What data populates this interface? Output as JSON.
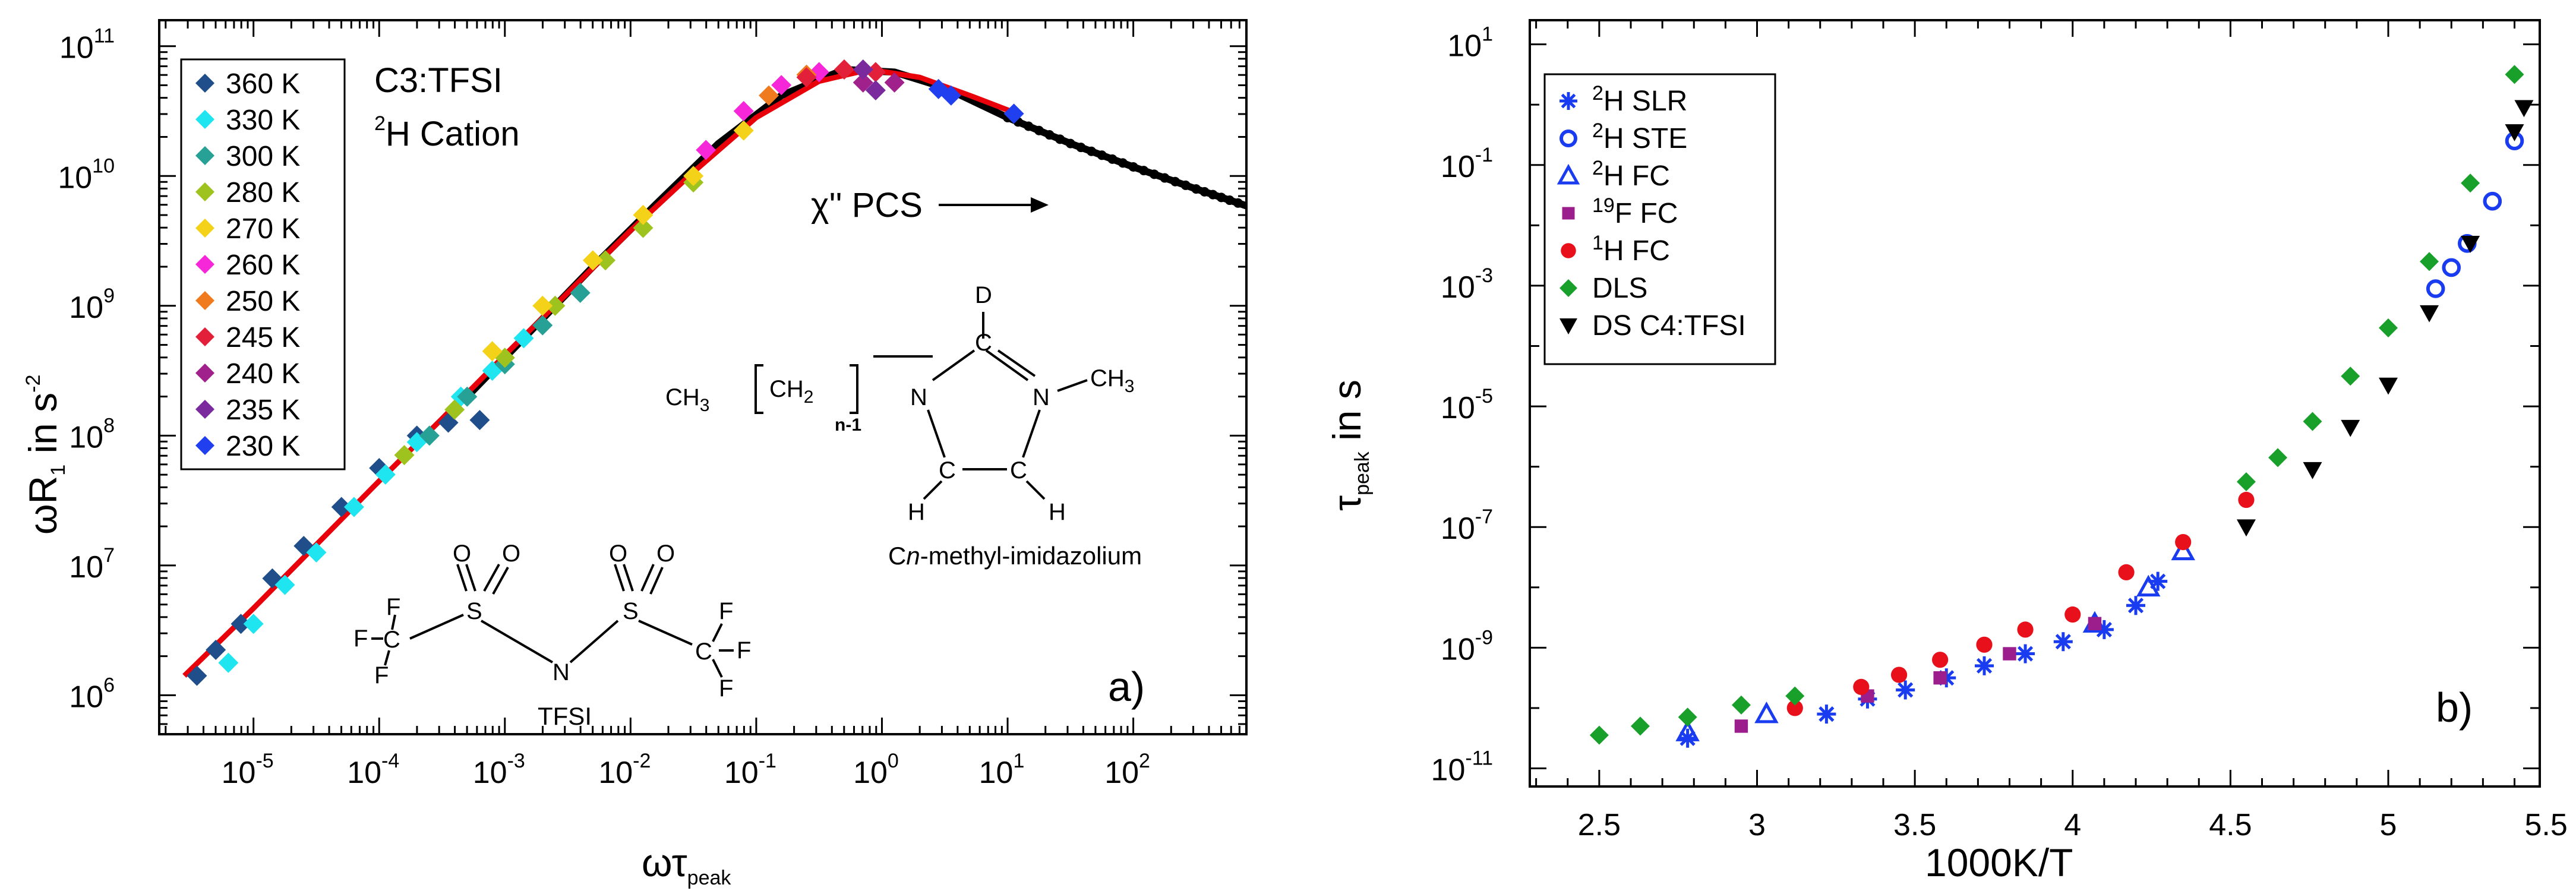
{
  "colors": {
    "fit_line": "#e8000b",
    "pcs_line": "#000000",
    "frame": "#000000"
  },
  "chart_data": [
    {
      "type": "scatter",
      "panel_label": "a)",
      "title": "C3:TFSI",
      "subtitle_base": "H Cation",
      "subtitle_sup": "2",
      "xlabel_base": "ωτ",
      "xlabel_sub": "peak",
      "ylabel_base": "ωR",
      "ylabel_sub": "1",
      "ylabel_mid": " in s",
      "ylabel_sup": "-2",
      "xscale": "log",
      "yscale": "log",
      "xlim_log10": [
        -5.75,
        2.9
      ],
      "ylim_log10": [
        5.7,
        11.2
      ],
      "x_ticks": [
        {
          "base": "10",
          "exp": "-5",
          "v": -5
        },
        {
          "base": "10",
          "exp": "-4",
          "v": -4
        },
        {
          "base": "10",
          "exp": "-3",
          "v": -3
        },
        {
          "base": "10",
          "exp": "-2",
          "v": -2
        },
        {
          "base": "10",
          "exp": "-1",
          "v": -1
        },
        {
          "base": "10",
          "exp": "0",
          "v": 0
        },
        {
          "base": "10",
          "exp": "1",
          "v": 1
        },
        {
          "base": "10",
          "exp": "2",
          "v": 2
        }
      ],
      "y_ticks": [
        {
          "base": "10",
          "exp": "6",
          "v": 6
        },
        {
          "base": "10",
          "exp": "7",
          "v": 7
        },
        {
          "base": "10",
          "exp": "8",
          "v": 8
        },
        {
          "base": "10",
          "exp": "9",
          "v": 9
        },
        {
          "base": "10",
          "exp": "10",
          "v": 10
        },
        {
          "base": "10",
          "exp": "11",
          "v": 11
        }
      ],
      "legend_position": "top-left",
      "series": [
        {
          "name": "360 K",
          "color": "#1f4e8a",
          "marker": "diamond",
          "points": [
            [
              -5.45,
              6.15
            ],
            [
              -5.3,
              6.35
            ],
            [
              -5.1,
              6.55
            ],
            [
              -4.85,
              6.9
            ],
            [
              -4.6,
              7.15
            ],
            [
              -4.3,
              7.45
            ],
            [
              -4.0,
              7.75
            ],
            [
              -3.7,
              8.0
            ],
            [
              -3.45,
              8.1
            ],
            [
              -3.2,
              8.12
            ]
          ]
        },
        {
          "name": "330 K",
          "color": "#1ee5f0",
          "marker": "diamond",
          "points": [
            [
              -5.2,
              6.25
            ],
            [
              -5.0,
              6.55
            ],
            [
              -4.75,
              6.85
            ],
            [
              -4.5,
              7.1
            ],
            [
              -4.2,
              7.45
            ],
            [
              -3.95,
              7.7
            ],
            [
              -3.7,
              7.95
            ],
            [
              -3.35,
              8.3
            ],
            [
              -3.1,
              8.5
            ],
            [
              -2.85,
              8.75
            ]
          ]
        },
        {
          "name": "300 K",
          "color": "#27a096",
          "marker": "diamond",
          "points": [
            [
              -3.6,
              8.0
            ],
            [
              -3.3,
              8.3
            ],
            [
              -3.0,
              8.55
            ],
            [
              -2.7,
              8.85
            ],
            [
              -2.4,
              9.1
            ]
          ]
        },
        {
          "name": "280 K",
          "color": "#9ec21e",
          "marker": "diamond",
          "points": [
            [
              -3.8,
              7.85
            ],
            [
              -3.4,
              8.2
            ],
            [
              -3.0,
              8.6
            ],
            [
              -2.6,
              9.0
            ],
            [
              -2.2,
              9.35
            ],
            [
              -1.9,
              9.6
            ],
            [
              -1.5,
              9.95
            ]
          ]
        },
        {
          "name": "270 K",
          "color": "#f5d21a",
          "marker": "diamond",
          "points": [
            [
              -3.1,
              8.65
            ],
            [
              -2.7,
              9.0
            ],
            [
              -2.3,
              9.35
            ],
            [
              -1.9,
              9.7
            ],
            [
              -1.5,
              10.0
            ],
            [
              -1.1,
              10.35
            ]
          ]
        },
        {
          "name": "260 K",
          "color": "#f527d8",
          "marker": "diamond",
          "points": [
            [
              -1.4,
              10.2
            ],
            [
              -1.1,
              10.5
            ],
            [
              -0.8,
              10.7
            ],
            [
              -0.5,
              10.8
            ]
          ]
        },
        {
          "name": "250 K",
          "color": "#f07a1e",
          "marker": "diamond",
          "points": [
            [
              -0.9,
              10.62
            ],
            [
              -0.6,
              10.78
            ],
            [
              -0.3,
              10.82
            ]
          ]
        },
        {
          "name": "245 K",
          "color": "#e3203a",
          "marker": "diamond",
          "points": [
            [
              -0.6,
              10.76
            ],
            [
              -0.3,
              10.82
            ],
            [
              -0.05,
              10.8
            ]
          ]
        },
        {
          "name": "240 K",
          "color": "#a0208c",
          "marker": "diamond",
          "points": [
            [
              -0.15,
              10.72
            ],
            [
              0.1,
              10.72
            ]
          ]
        },
        {
          "name": "235 K",
          "color": "#7a2a9c",
          "marker": "diamond",
          "points": [
            [
              -0.15,
              10.82
            ],
            [
              -0.05,
              10.66
            ]
          ]
        },
        {
          "name": "230 K",
          "color": "#2040f0",
          "marker": "diamond",
          "points": [
            [
              0.45,
              10.67
            ],
            [
              0.55,
              10.62
            ],
            [
              1.05,
              10.48
            ]
          ]
        }
      ],
      "lines": [
        {
          "name": "χ'' PCS",
          "color": "#000000",
          "points": [
            [
              -3.3,
              8.3
            ],
            [
              -2.8,
              8.8
            ],
            [
              -2.3,
              9.3
            ],
            [
              -1.8,
              9.78
            ],
            [
              -1.3,
              10.25
            ],
            [
              -0.8,
              10.62
            ],
            [
              -0.3,
              10.82
            ],
            [
              0.1,
              10.8
            ],
            [
              0.5,
              10.68
            ],
            [
              1.0,
              10.45
            ],
            [
              1.5,
              10.25
            ],
            [
              2.0,
              10.07
            ],
            [
              2.5,
              9.9
            ],
            [
              2.9,
              9.77
            ]
          ]
        },
        {
          "name": "fit",
          "color": "#e8000b",
          "points": [
            [
              -5.55,
              6.15
            ],
            [
              -5.0,
              6.67
            ],
            [
              -4.5,
              7.16
            ],
            [
              -4.0,
              7.65
            ],
            [
              -3.5,
              8.13
            ],
            [
              -3.0,
              8.62
            ],
            [
              -2.5,
              9.1
            ],
            [
              -2.0,
              9.58
            ],
            [
              -1.5,
              10.03
            ],
            [
              -1.0,
              10.45
            ],
            [
              -0.5,
              10.73
            ],
            [
              -0.1,
              10.82
            ],
            [
              0.3,
              10.76
            ],
            [
              0.7,
              10.62
            ],
            [
              1.05,
              10.49
            ]
          ]
        }
      ],
      "annotation": "χ'' PCS",
      "chem_cation": {
        "caption_pre": "C",
        "caption_ital": "n",
        "caption_post": "-methyl-imidazolium",
        "ch3_left": "CH",
        "ch3_right": "CH",
        "ch2": "CH",
        "n_minus_1": "n-1",
        "n1": "N",
        "n2": "N",
        "d": "D",
        "c": "C",
        "h": "H",
        "sub3": "3",
        "sub2": "2"
      },
      "chem_anion": {
        "caption": "TFSI",
        "f": "F",
        "c": "C",
        "s": "S",
        "o": "O",
        "n": "N"
      }
    },
    {
      "type": "scatter",
      "panel_label": "b)",
      "xlabel": "1000K/T",
      "ylabel_base": "τ",
      "ylabel_sub": "peak",
      "ylabel_post": " in s",
      "xscale": "linear",
      "yscale": "log",
      "xlim": [
        2.28,
        5.48
      ],
      "ylim_log10": [
        -11.3,
        1.4
      ],
      "x_ticks": [
        "2.5",
        "3",
        "3.5",
        "4",
        "4.5",
        "5",
        "5.5"
      ],
      "y_ticks": [
        {
          "base": "10",
          "exp": "-11",
          "v": -11
        },
        {
          "base": "10",
          "exp": "-9",
          "v": -9
        },
        {
          "base": "10",
          "exp": "-7",
          "v": -7
        },
        {
          "base": "10",
          "exp": "-5",
          "v": -5
        },
        {
          "base": "10",
          "exp": "-3",
          "v": -3
        },
        {
          "base": "10",
          "exp": "-1",
          "v": -1
        },
        {
          "base": "10",
          "exp": "1",
          "v": 1
        }
      ],
      "legend_position": "top-left",
      "series": [
        {
          "name_sup": "2",
          "name": "H SLR",
          "color": "#1a3cf0",
          "marker": "star",
          "points": [
            [
              2.78,
              -10.5
            ],
            [
              3.22,
              -10.1
            ],
            [
              3.35,
              -9.85
            ],
            [
              3.47,
              -9.7
            ],
            [
              3.6,
              -9.5
            ],
            [
              3.72,
              -9.3
            ],
            [
              3.85,
              -9.1
            ],
            [
              3.97,
              -8.9
            ],
            [
              4.1,
              -8.7
            ],
            [
              4.2,
              -8.3
            ],
            [
              4.27,
              -7.9
            ]
          ]
        },
        {
          "name_sup": "2",
          "name": "H STE",
          "color": "#1a3cf0",
          "marker": "circle",
          "points": [
            [
              5.15,
              -3.05
            ],
            [
              5.2,
              -2.7
            ],
            [
              5.25,
              -2.3
            ],
            [
              5.33,
              -1.6
            ],
            [
              5.4,
              -0.6
            ]
          ]
        },
        {
          "name_sup": "2",
          "name": "H FC",
          "color": "#1a3cf0",
          "marker": "triangle",
          "points": [
            [
              2.78,
              -10.4
            ],
            [
              3.03,
              -10.1
            ],
            [
              4.07,
              -8.6
            ],
            [
              4.24,
              -8.0
            ],
            [
              4.35,
              -7.4
            ]
          ]
        },
        {
          "name_sup": "19",
          "name": "F FC",
          "color": "#9b1e8c",
          "marker": "square",
          "points": [
            [
              2.95,
              -10.3
            ],
            [
              3.35,
              -9.8
            ],
            [
              3.58,
              -9.5
            ],
            [
              3.8,
              -9.1
            ],
            [
              4.07,
              -8.6
            ]
          ]
        },
        {
          "name_sup": "1",
          "name": "H FC",
          "color": "#e8101a",
          "marker": "circle_filled",
          "points": [
            [
              3.12,
              -10.0
            ],
            [
              3.33,
              -9.65
            ],
            [
              3.45,
              -9.45
            ],
            [
              3.58,
              -9.2
            ],
            [
              3.72,
              -8.95
            ],
            [
              3.85,
              -8.7
            ],
            [
              4.0,
              -8.45
            ],
            [
              4.17,
              -7.75
            ],
            [
              4.35,
              -7.25
            ],
            [
              4.55,
              -6.55
            ]
          ]
        },
        {
          "name": "DLS",
          "color": "#18a02a",
          "marker": "diamond",
          "points": [
            [
              2.5,
              -10.45
            ],
            [
              2.63,
              -10.3
            ],
            [
              2.78,
              -10.15
            ],
            [
              2.95,
              -9.95
            ],
            [
              3.12,
              -9.8
            ],
            [
              4.55,
              -6.25
            ],
            [
              4.65,
              -5.85
            ],
            [
              4.76,
              -5.25
            ],
            [
              4.88,
              -4.5
            ],
            [
              5.0,
              -3.7
            ],
            [
              5.13,
              -2.6
            ],
            [
              5.26,
              -1.3
            ],
            [
              5.4,
              0.5
            ]
          ]
        },
        {
          "name": "DS C4:TFSI",
          "color": "#000000",
          "marker": "triangle_down",
          "points": [
            [
              4.55,
              -7.0
            ],
            [
              4.76,
              -6.05
            ],
            [
              4.88,
              -5.35
            ],
            [
              5.0,
              -4.65
            ],
            [
              5.13,
              -3.45
            ],
            [
              5.26,
              -2.3
            ],
            [
              5.4,
              -0.45
            ],
            [
              5.43,
              -0.05
            ]
          ]
        }
      ]
    }
  ]
}
